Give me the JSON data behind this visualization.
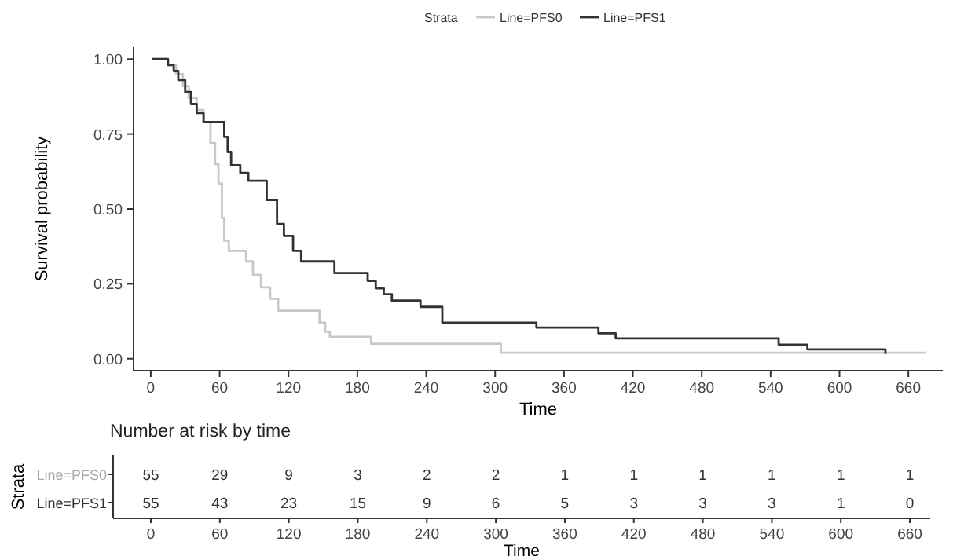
{
  "chart_data": [
    {
      "type": "step",
      "xlabel": "Time",
      "ylabel": "Survival probability",
      "legend_title": "Strata",
      "legend": "top",
      "grid": false,
      "xlim": [
        -15,
        690
      ],
      "ylim": [
        -0.04,
        1.04
      ],
      "xticks": [
        0,
        60,
        120,
        180,
        240,
        300,
        360,
        420,
        480,
        540,
        600,
        660
      ],
      "yticks": [
        {
          "value": 0,
          "label": "0.00"
        },
        {
          "value": 0.25,
          "label": "0.25"
        },
        {
          "value": 0.5,
          "label": "0.50"
        },
        {
          "value": 0.75,
          "label": "0.75"
        },
        {
          "value": 1,
          "label": "1.00"
        }
      ],
      "series": [
        {
          "name": "Line=PFS0",
          "color": "#c8c8c8",
          "x": [
            1,
            15,
            22,
            28,
            33,
            40,
            46,
            52,
            56,
            59,
            62,
            64,
            68,
            73,
            83,
            89,
            96,
            104,
            111,
            147,
            152,
            156,
            192,
            305,
            675
          ],
          "values": [
            1,
            0.98,
            0.95,
            0.91,
            0.87,
            0.83,
            0.79,
            0.72,
            0.65,
            0.585,
            0.47,
            0.394,
            0.36,
            0.36,
            0.325,
            0.28,
            0.238,
            0.2,
            0.16,
            0.12,
            0.09,
            0.073,
            0.05,
            0.02,
            0.02
          ]
        },
        {
          "name": "Line=PFS1",
          "color": "#333333",
          "x": [
            1,
            15,
            20,
            24,
            30,
            35,
            40,
            46,
            64,
            67,
            70,
            78,
            85,
            101,
            110,
            116,
            124,
            131,
            160,
            189,
            196,
            203,
            210,
            235,
            254,
            336,
            390,
            405,
            547,
            572,
            640
          ],
          "values": [
            1,
            0.98,
            0.96,
            0.93,
            0.89,
            0.85,
            0.82,
            0.79,
            0.74,
            0.69,
            0.646,
            0.62,
            0.594,
            0.53,
            0.45,
            0.41,
            0.36,
            0.325,
            0.286,
            0.26,
            0.235,
            0.215,
            0.194,
            0.173,
            0.12,
            0.104,
            0.085,
            0.068,
            0.047,
            0.031,
            0.016
          ]
        }
      ]
    },
    {
      "type": "heatmap",
      "title": "Number at risk by time",
      "xlabel": "Time",
      "ylabel": "Strata",
      "data_labels": true,
      "categories": [
        "0",
        "60",
        "120",
        "180",
        "240",
        "300",
        "360",
        "420",
        "480",
        "540",
        "600",
        "660"
      ],
      "y_categories": [
        "Line=PFS0",
        "Line=PFS1"
      ],
      "cells": [
        [
          55,
          29,
          9,
          3,
          2,
          2,
          1,
          1,
          1,
          1,
          1,
          1
        ],
        [
          55,
          43,
          23,
          15,
          9,
          6,
          5,
          3,
          3,
          3,
          1,
          0
        ]
      ]
    }
  ]
}
